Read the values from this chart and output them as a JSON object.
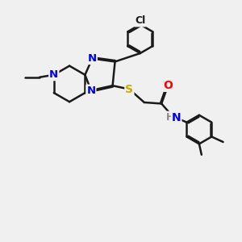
{
  "bg_color": "#f0f0f0",
  "bond_color": "#1a1a1a",
  "bond_width": 1.8,
  "atom_colors": {
    "N": "#0000ee",
    "S": "#ccaa00",
    "O": "#ff0000",
    "Cl": "#1a1a1a",
    "H": "#888888",
    "C": "#1a1a1a"
  },
  "font_size_atom": 9.5,
  "font_size_small": 8.0
}
